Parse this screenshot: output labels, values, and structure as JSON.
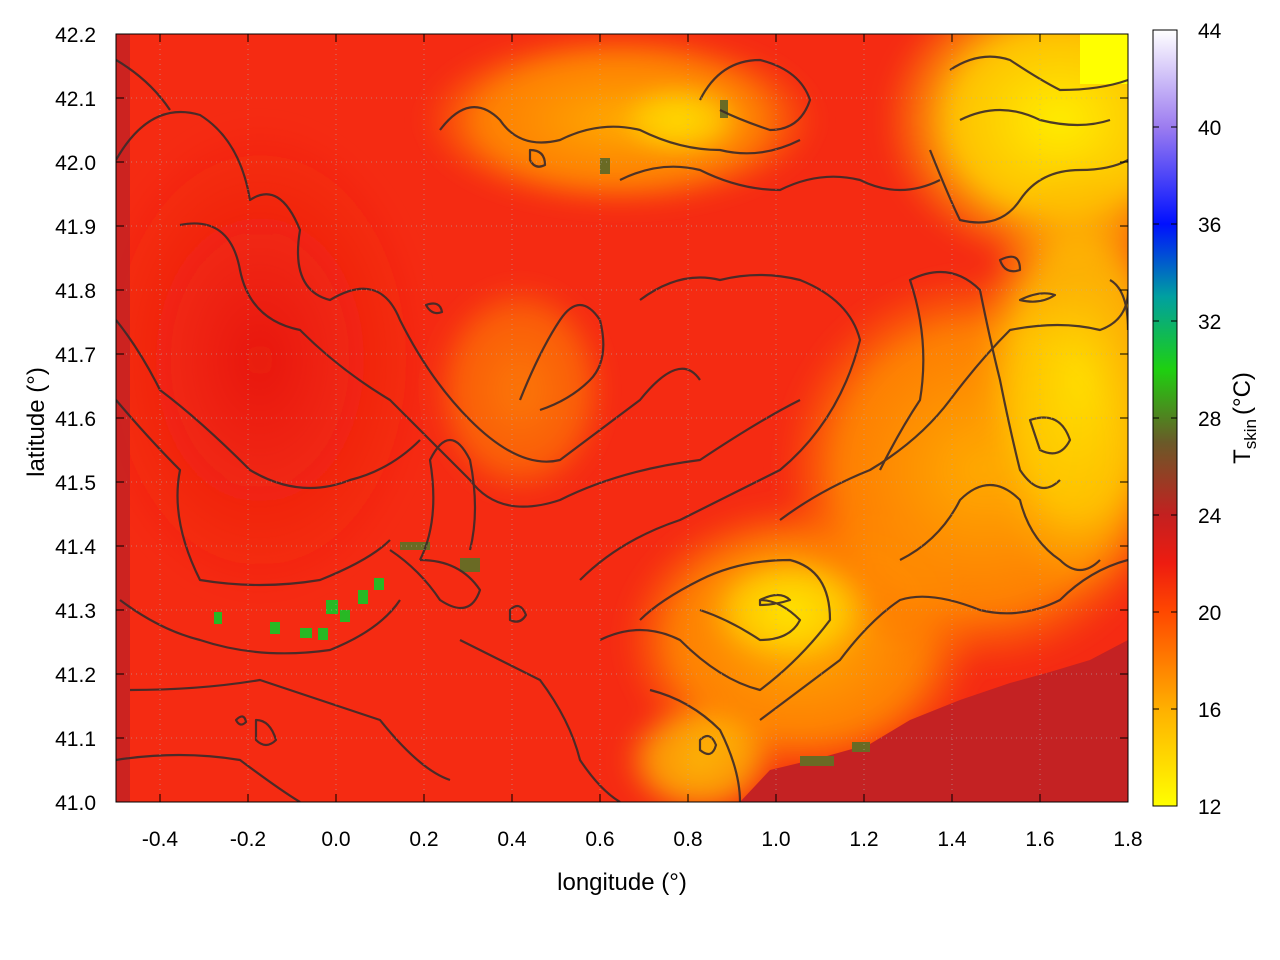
{
  "chart_data": {
    "type": "heatmap",
    "title": "",
    "xlabel": "longitude (°)",
    "ylabel": "latitude (°)",
    "xlim": [
      -0.5,
      1.8
    ],
    "ylim": [
      41.0,
      42.2
    ],
    "x_ticks": [
      "-0.4",
      "-0.2",
      "0.0",
      "0.2",
      "0.4",
      "0.6",
      "0.8",
      "1.0",
      "1.2",
      "1.4",
      "1.6",
      "1.8"
    ],
    "x_tick_values": [
      -0.4,
      -0.2,
      0.0,
      0.2,
      0.4,
      0.6,
      0.8,
      1.0,
      1.2,
      1.4,
      1.6,
      1.8
    ],
    "y_ticks": [
      "41.0",
      "41.1",
      "41.2",
      "41.3",
      "41.4",
      "41.5",
      "41.6",
      "41.7",
      "41.8",
      "41.9",
      "42.0",
      "42.1",
      "42.2"
    ],
    "y_tick_values": [
      41.0,
      41.1,
      41.2,
      41.3,
      41.4,
      41.5,
      41.6,
      41.7,
      41.8,
      41.9,
      42.0,
      42.1,
      42.2
    ],
    "grid": true,
    "contours": true,
    "colorbar": {
      "label": "skin",
      "label_main": "T",
      "label_sub": "skin",
      "label_unit": "(°C)",
      "range": [
        12,
        44
      ],
      "ticks": [
        "12",
        "16",
        "20",
        "24",
        "28",
        "32",
        "36",
        "40",
        "44"
      ],
      "tick_values": [
        12,
        16,
        20,
        24,
        28,
        32,
        36,
        40,
        44
      ],
      "colormap": [
        {
          "value": 12,
          "color": "#ffff00"
        },
        {
          "value": 16,
          "color": "#ffb000"
        },
        {
          "value": 20,
          "color": "#ff4800"
        },
        {
          "value": 22,
          "color": "#ee1c10"
        },
        {
          "value": 24,
          "color": "#c32020"
        },
        {
          "value": 27,
          "color": "#6a5a28"
        },
        {
          "value": 30,
          "color": "#1ed010"
        },
        {
          "value": 33,
          "color": "#00a0a0"
        },
        {
          "value": 36,
          "color": "#0010ff"
        },
        {
          "value": 40,
          "color": "#9c7cf0"
        },
        {
          "value": 44,
          "color": "#ffffff"
        }
      ]
    },
    "regions": [
      {
        "name": "red-interior",
        "value": 21.5
      },
      {
        "name": "yellow-northeast",
        "value": 14.5
      },
      {
        "name": "orange-plain",
        "value": 17.5
      },
      {
        "name": "sea-southeast",
        "value": 25.0
      },
      {
        "name": "green-patches",
        "value": 29.0
      }
    ]
  }
}
